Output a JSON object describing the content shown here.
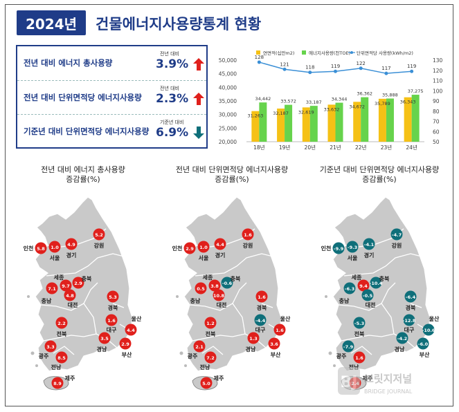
{
  "header": {
    "year_badge": "2024년",
    "title": "건물에너지사용량통계 현황"
  },
  "stats": [
    {
      "label": "전년 대비 에너지 총사용량",
      "sub": "전년 대비",
      "value": "3.9%",
      "direction": "up"
    },
    {
      "label": "전년 대비 단위면적당 에너지사용량",
      "sub": "전년 대비",
      "value": "2.3%",
      "direction": "up"
    },
    {
      "label": "기준년 대비 단위면적당 에너지사용량",
      "sub": "기준년 대비",
      "value": "6.9%",
      "direction": "down"
    }
  ],
  "colors": {
    "navy": "#1f3c88",
    "area_bar": "#f5c116",
    "energy_bar": "#66d34c",
    "line": "#3a8fd6",
    "red_dot": "#e0201c",
    "teal_dot": "#0f6f7a",
    "map_fill": "#c9c9c9",
    "up_arrow": "#e0201c",
    "down_arrow": "#0f6f7a"
  },
  "chart_data": {
    "type": "bar",
    "categories": [
      "18년",
      "19년",
      "20년",
      "21년",
      "22년",
      "23년",
      "24년"
    ],
    "series": [
      {
        "name": "연면적(십만m2)",
        "type": "bar",
        "axis": "left",
        "values": [
          31263,
          32187,
          32619,
          33632,
          34672,
          35789,
          36343
        ],
        "labels": [
          "31,263",
          "32,187",
          "32,619",
          "33,632",
          "34,672",
          "35,789",
          "36,343"
        ]
      },
      {
        "name": "에너지사용량(천TOE)",
        "type": "bar",
        "axis": "left",
        "values": [
          34442,
          33572,
          33187,
          34344,
          36362,
          35888,
          37275
        ],
        "labels": [
          "34,442",
          "33,572",
          "33,187",
          "34,344",
          "36,362",
          "35,888",
          "37,275"
        ]
      },
      {
        "name": "단위면적당 사용량(kWh/m2)",
        "type": "line",
        "axis": "right",
        "values": [
          128,
          121,
          118,
          119,
          122,
          117,
          119
        ],
        "labels": [
          "128",
          "121",
          "118",
          "119",
          "122",
          "117",
          "119"
        ]
      }
    ],
    "ylim_left": [
      20000,
      50000
    ],
    "yticks_left": [
      "50,000",
      "45,000",
      "40,000",
      "35,000",
      "30,000",
      "25,000",
      "20,000"
    ],
    "ylim_right": [
      50,
      130
    ],
    "yticks_right": [
      "130",
      "120",
      "110",
      "100",
      "90",
      "80",
      "70",
      "60",
      "50"
    ],
    "legend_position": "top",
    "grid": false
  },
  "maps": [
    {
      "title_line1": "전년 대비 에너지 총사용량",
      "title_line2": "증감률(%)",
      "regions": [
        {
          "name": "인천",
          "value": "5.8",
          "trend": "up"
        },
        {
          "name": "서울",
          "value": "1.0",
          "trend": "up"
        },
        {
          "name": "경기",
          "value": "4.9",
          "trend": "up"
        },
        {
          "name": "강원",
          "value": "5.2",
          "trend": "up"
        },
        {
          "name": "세종",
          "value": "9.7",
          "trend": "up"
        },
        {
          "name": "충북",
          "value": "2.9",
          "trend": "up"
        },
        {
          "name": "충남",
          "value": "7.1",
          "trend": "up"
        },
        {
          "name": "대전",
          "value": "4.8",
          "trend": "up"
        },
        {
          "name": "경북",
          "value": "5.3",
          "trend": "up"
        },
        {
          "name": "대구",
          "value": "1.6",
          "trend": "up"
        },
        {
          "name": "울산",
          "value": "4.4",
          "trend": "up"
        },
        {
          "name": "전북",
          "value": "2.2",
          "trend": "up"
        },
        {
          "name": "경남",
          "value": "3.5",
          "trend": "up"
        },
        {
          "name": "부산",
          "value": "2.9",
          "trend": "up"
        },
        {
          "name": "광주",
          "value": "3.3",
          "trend": "up"
        },
        {
          "name": "전남",
          "value": "8.5",
          "trend": "up"
        },
        {
          "name": "제주",
          "value": "8.9",
          "trend": "up"
        }
      ]
    },
    {
      "title_line1": "전년 대비 단위면적당 에너지사용량",
      "title_line2": "증감률(%)",
      "regions": [
        {
          "name": "인천",
          "value": "2.9",
          "trend": "up"
        },
        {
          "name": "서울",
          "value": "1.0",
          "trend": "up"
        },
        {
          "name": "경기",
          "value": "4.4",
          "trend": "up"
        },
        {
          "name": "강원",
          "value": "1.6",
          "trend": "up"
        },
        {
          "name": "세종",
          "value": "3.8",
          "trend": "up"
        },
        {
          "name": "충북",
          "value": "-0.6",
          "trend": "down"
        },
        {
          "name": "충남",
          "value": "0.5",
          "trend": "up"
        },
        {
          "name": "대전",
          "value": "10.8",
          "trend": "up"
        },
        {
          "name": "경북",
          "value": "1.6",
          "trend": "up"
        },
        {
          "name": "대구",
          "value": "-4.4",
          "trend": "down"
        },
        {
          "name": "울산",
          "value": "1.6",
          "trend": "up"
        },
        {
          "name": "전북",
          "value": "1.2",
          "trend": "up"
        },
        {
          "name": "경남",
          "value": "1.3",
          "trend": "up"
        },
        {
          "name": "부산",
          "value": "3.6",
          "trend": "up"
        },
        {
          "name": "광주",
          "value": "2.1",
          "trend": "up"
        },
        {
          "name": "전남",
          "value": "7.2",
          "trend": "up"
        },
        {
          "name": "제주",
          "value": "5.0",
          "trend": "up"
        }
      ]
    },
    {
      "title_line1": "기준년 대비 단위면적당 에너지사용량",
      "title_line2": "증감률(%)",
      "regions": [
        {
          "name": "인천",
          "value": "-9.9",
          "trend": "down"
        },
        {
          "name": "서울",
          "value": "-9.3",
          "trend": "down"
        },
        {
          "name": "경기",
          "value": "-4.1",
          "trend": "down"
        },
        {
          "name": "강원",
          "value": "-4.7",
          "trend": "down"
        },
        {
          "name": "세종",
          "value": "9.4",
          "trend": "up"
        },
        {
          "name": "충북",
          "value": "-10.4",
          "trend": "down"
        },
        {
          "name": "충남",
          "value": "-6.3",
          "trend": "down"
        },
        {
          "name": "대전",
          "value": "-0.5",
          "trend": "down"
        },
        {
          "name": "경북",
          "value": "-6.4",
          "trend": "down"
        },
        {
          "name": "대구",
          "value": "-12.8",
          "trend": "down"
        },
        {
          "name": "울산",
          "value": "-10.6",
          "trend": "down"
        },
        {
          "name": "전북",
          "value": "-5.3",
          "trend": "down"
        },
        {
          "name": "경남",
          "value": "-4.2",
          "trend": "down"
        },
        {
          "name": "부산",
          "value": "-6.0",
          "trend": "down"
        },
        {
          "name": "광주",
          "value": "-7.9",
          "trend": "down"
        },
        {
          "name": "전남",
          "value": "1.6",
          "trend": "up"
        },
        {
          "name": "제주",
          "value": "2.4",
          "trend": "up"
        }
      ]
    }
  ],
  "watermark": {
    "initials": "BJ",
    "korean": "브릿지저널",
    "english": "BRIDGE JOURNAL"
  }
}
